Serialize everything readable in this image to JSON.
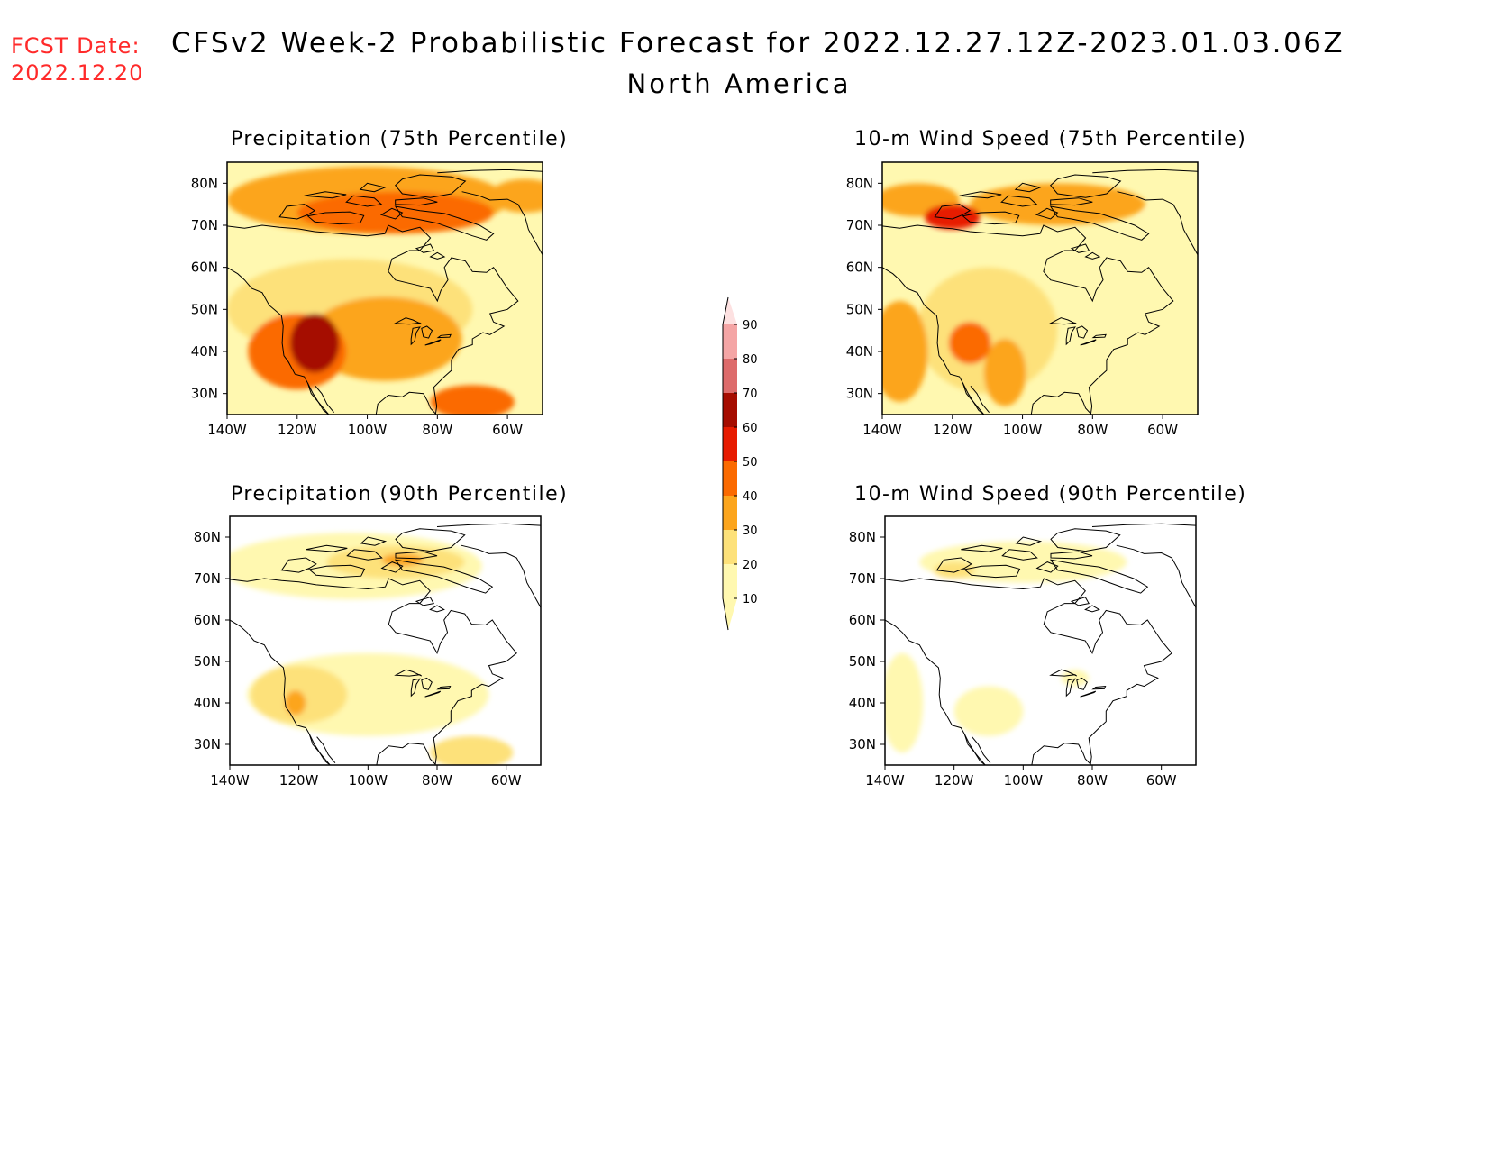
{
  "header": {
    "fcst_label": "FCST Date:",
    "fcst_date": "2022.12.20",
    "title": "CFSv2 Week-2 Probabilistic Forecast for 2022.12.27.12Z-2023.01.03.06Z",
    "subtitle": "North America"
  },
  "colors": {
    "levels": [
      "#ffffff",
      "#fff8b0",
      "#fde17a",
      "#fca51d",
      "#fb6a00",
      "#e71b00",
      "#a50c00",
      "#dd6b6b",
      "#f4a5a5",
      "#fde1e1"
    ],
    "coastline": "#000000"
  },
  "colorbar": {
    "labels": [
      "10",
      "20",
      "30",
      "40",
      "50",
      "60",
      "70",
      "80",
      "90"
    ]
  },
  "axes": {
    "lon_ticks": [
      "140W",
      "120W",
      "100W",
      "80W",
      "60W"
    ],
    "lat_ticks": [
      "80N",
      "70N",
      "60N",
      "50N",
      "40N",
      "30N"
    ]
  },
  "panels": [
    {
      "title": "Precipitation (75th Percentile)",
      "blobs": [
        {
          "lon": -120,
          "lat": 40,
          "rx": 14,
          "ry": 9,
          "level": 4
        },
        {
          "lon": -115,
          "lat": 42,
          "rx": 7,
          "ry": 7,
          "level": 6
        },
        {
          "lon": -95,
          "lat": 43,
          "rx": 22,
          "ry": 10,
          "level": 3
        },
        {
          "lon": -92,
          "lat": 73,
          "rx": 28,
          "ry": 5,
          "level": 4
        },
        {
          "lon": -100,
          "lat": 76,
          "rx": 40,
          "ry": 8,
          "level": 3
        },
        {
          "lon": -70,
          "lat": 28,
          "rx": 12,
          "ry": 4,
          "level": 4
        },
        {
          "lon": -105,
          "lat": 50,
          "rx": 35,
          "ry": 12,
          "level": 2
        },
        {
          "lon": -55,
          "lat": 77,
          "rx": 10,
          "ry": 4,
          "level": 3
        }
      ]
    },
    {
      "title": "10-m Wind Speed (75th Percentile)",
      "blobs": [
        {
          "lon": -135,
          "lat": 40,
          "rx": 8,
          "ry": 12,
          "level": 3
        },
        {
          "lon": -115,
          "lat": 42,
          "rx": 6,
          "ry": 5,
          "level": 4
        },
        {
          "lon": -105,
          "lat": 35,
          "rx": 6,
          "ry": 8,
          "level": 3
        },
        {
          "lon": -120,
          "lat": 72,
          "rx": 8,
          "ry": 3,
          "level": 5
        },
        {
          "lon": -90,
          "lat": 75,
          "rx": 25,
          "ry": 5,
          "level": 3
        },
        {
          "lon": -130,
          "lat": 76,
          "rx": 12,
          "ry": 4,
          "level": 3
        },
        {
          "lon": -110,
          "lat": 45,
          "rx": 20,
          "ry": 15,
          "level": 2
        },
        {
          "lon": -60,
          "lat": 55,
          "rx": 12,
          "ry": 20,
          "level": 1
        }
      ]
    },
    {
      "title": "Precipitation (90th Percentile)",
      "blobs": [
        {
          "lon": -120,
          "lat": 42,
          "rx": 14,
          "ry": 7,
          "level": 2
        },
        {
          "lon": -121,
          "lat": 40,
          "rx": 3,
          "ry": 3,
          "level": 3
        },
        {
          "lon": -92,
          "lat": 74,
          "rx": 20,
          "ry": 4,
          "level": 2
        },
        {
          "lon": -90,
          "lat": 74.5,
          "rx": 6,
          "ry": 1.5,
          "level": 3
        },
        {
          "lon": -70,
          "lat": 28,
          "rx": 12,
          "ry": 4,
          "level": 2
        },
        {
          "lon": -100,
          "lat": 42,
          "rx": 35,
          "ry": 10,
          "level": 1
        },
        {
          "lon": -105,
          "lat": 73,
          "rx": 38,
          "ry": 8,
          "level": 1
        }
      ]
    },
    {
      "title": "10-m Wind Speed (90th Percentile)",
      "blobs": [
        {
          "lon": -135,
          "lat": 40,
          "rx": 6,
          "ry": 12,
          "level": 1
        },
        {
          "lon": -110,
          "lat": 38,
          "rx": 10,
          "ry": 6,
          "level": 1
        },
        {
          "lon": -100,
          "lat": 74,
          "rx": 30,
          "ry": 5,
          "level": 1
        },
        {
          "lon": -120,
          "lat": 72,
          "rx": 6,
          "ry": 2,
          "level": 2
        },
        {
          "lon": -85,
          "lat": 46,
          "rx": 4,
          "ry": 2,
          "level": 1
        }
      ]
    }
  ]
}
